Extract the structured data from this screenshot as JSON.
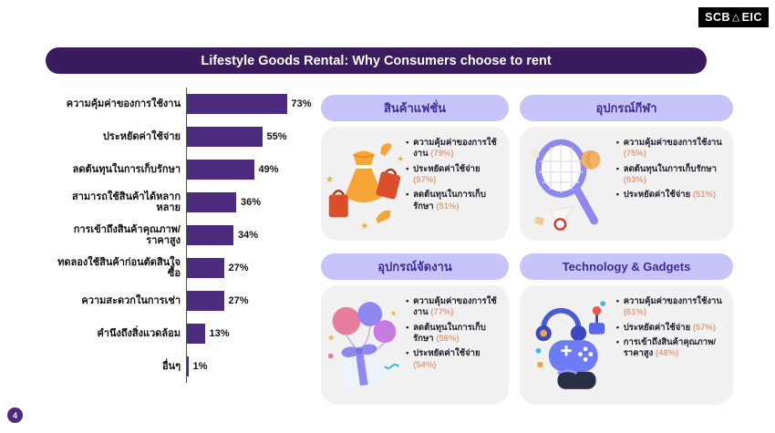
{
  "logo": {
    "left": "SCB",
    "mark": "△",
    "right": "EIC"
  },
  "title": "Lifestyle Goods Rental: Why Consumers choose to rent",
  "page_number": "4",
  "colors": {
    "title_bg": "#3A1B5E",
    "bar": "#4D2C80",
    "card_header_bg": "#C6C4F9",
    "card_header_text": "#3D2E96",
    "card_body_bg": "#F2F1F1",
    "bullet_value": "#DFA081",
    "page_dot_bg": "#4D2C80"
  },
  "chart_data": {
    "type": "bar",
    "orientation": "horizontal",
    "title": "",
    "xlabel": "",
    "ylabel": "",
    "xlim": [
      0,
      100
    ],
    "grid": false,
    "categories": [
      "ความคุ้มค่าของการใช้งาน",
      "ประหยัดค่าใช้จ่าย",
      "ลดต้นทุนในการเก็บรักษา",
      "สามารถใช้สินค้าได้หลากหลาย",
      "การเข้าถึงสินค้าคุณภาพ/ราคาสูง",
      "ทดลองใช้สินค้าก่อนตัดสินใจซื้อ",
      "ความสะดวกในการเช่า",
      "คำนึงถึงสิ่งแวดล้อม",
      "อื่นๆ"
    ],
    "values": [
      73,
      55,
      49,
      36,
      34,
      27,
      27,
      13,
      1
    ],
    "value_labels": [
      "73%",
      "55%",
      "49%",
      "36%",
      "34%",
      "27%",
      "27%",
      "13%",
      "1%"
    ]
  },
  "cards": [
    {
      "title": "สินค้าแฟชั่น",
      "illustration": "fashion-dress-heels-shopping-bags",
      "bullets": [
        {
          "text": "ความคุ้มค่าของการใช้งาน",
          "value": "(79%)"
        },
        {
          "text": "ประหยัดค่าใช้จ่าย",
          "value": "(57%)"
        },
        {
          "text": "ลดต้นทุนในการเก็บรักษา",
          "value": "(51%)"
        }
      ]
    },
    {
      "title": "อุปกรณ์กีฬา",
      "illustration": "sports-racket-ball-shuttlecock",
      "bullets": [
        {
          "text": "ความคุ้มค่าของการใช้งาน",
          "value": "(75%)"
        },
        {
          "text": "ลดต้นทุนในการเก็บรักษา",
          "value": "(53%)"
        },
        {
          "text": "ประหยัดค่าใช้จ่าย",
          "value": "(51%)"
        }
      ]
    },
    {
      "title": "อุปกรณ์จัดงาน",
      "illustration": "party-gift-box-balloons",
      "bullets": [
        {
          "text": "ความคุ้มค่าของการใช้งาน",
          "value": "(77%)"
        },
        {
          "text": "ลดต้นทุนในการเก็บรักษา",
          "value": "(56%)"
        },
        {
          "text": "ประหยัดค่าใช้จ่าย",
          "value": "(54%)"
        }
      ]
    },
    {
      "title": "Technology & Gadgets",
      "illustration": "gaming-controller-headphones-vr",
      "bullets": [
        {
          "text": "ความคุ้มค่าของการใช้งาน",
          "value": "(61%)"
        },
        {
          "text": "ประหยัดค่าใช้จ่าย",
          "value": "(57%)"
        },
        {
          "text": "การเข้าถึงสินค้าคุณภาพ/ราคาสูง",
          "value": "(48%)"
        }
      ]
    }
  ]
}
